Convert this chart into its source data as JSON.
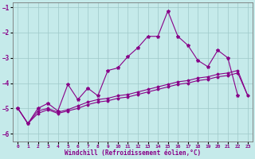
{
  "xlabel": "Windchill (Refroidissement éolien,°C)",
  "background_color": "#c5eaea",
  "grid_color": "#9ec8c8",
  "line_color": "#880088",
  "x": [
    0,
    1,
    2,
    3,
    4,
    5,
    6,
    7,
    8,
    9,
    10,
    11,
    12,
    13,
    14,
    15,
    16,
    17,
    18,
    19,
    20,
    21,
    22,
    23
  ],
  "line1": [
    -5.0,
    -5.6,
    -5.0,
    -4.8,
    -5.1,
    -4.05,
    -4.65,
    -4.2,
    -4.5,
    -3.5,
    -3.4,
    -2.95,
    -2.6,
    -2.15,
    -2.15,
    -1.15,
    -2.15,
    -2.5,
    -3.1,
    -3.35,
    -2.7,
    -3.0,
    -4.5,
    null
  ],
  "line2": [
    -5.0,
    -5.6,
    -5.1,
    -5.0,
    -5.15,
    -5.05,
    -4.9,
    -4.75,
    -4.65,
    -4.6,
    -4.5,
    -4.45,
    -4.35,
    -4.25,
    -4.15,
    -4.05,
    -3.95,
    -3.9,
    -3.8,
    -3.75,
    -3.65,
    -3.6,
    -3.5,
    -4.5
  ],
  "line3": [
    -5.0,
    -5.6,
    -5.2,
    -5.05,
    -5.2,
    -5.1,
    -5.0,
    -4.85,
    -4.75,
    -4.7,
    -4.6,
    -4.55,
    -4.45,
    -4.35,
    -4.25,
    -4.15,
    -4.05,
    -4.0,
    -3.9,
    -3.85,
    -3.75,
    -3.7,
    -3.6,
    -4.5
  ],
  "ylim": [
    -6.3,
    -0.8
  ],
  "xlim": [
    -0.5,
    23.5
  ],
  "yticks": [
    -6,
    -5,
    -4,
    -3,
    -2,
    -1
  ],
  "xticks": [
    0,
    1,
    2,
    3,
    4,
    5,
    6,
    7,
    8,
    9,
    10,
    11,
    12,
    13,
    14,
    15,
    16,
    17,
    18,
    19,
    20,
    21,
    22,
    23
  ]
}
